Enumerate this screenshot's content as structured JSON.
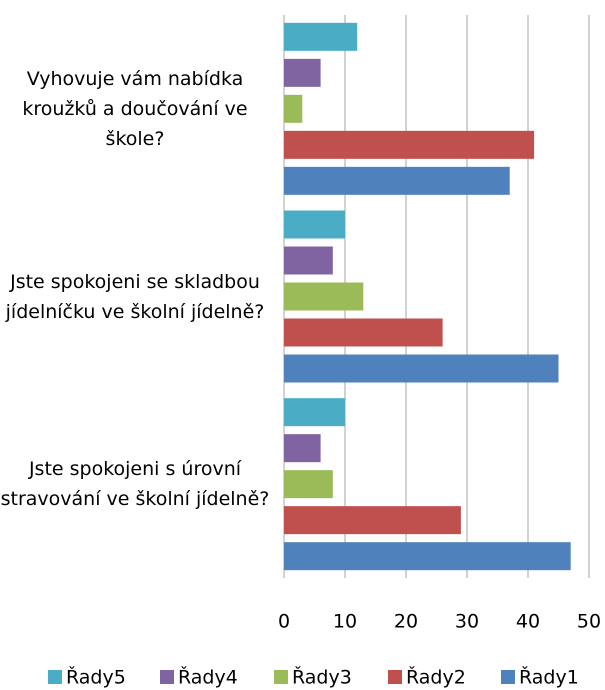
{
  "chart_data": {
    "type": "hbar",
    "categories": [
      "Vyhovuje vám nabídka kroužků a doučování ve škole?",
      "Jste spokojeni se skladbou jídelníčku ve školní jídelně?",
      "Jste spokojeni s úrovní stravování ve školní jídelně?"
    ],
    "series": [
      {
        "name": "Řady5",
        "color": "#4bacc6",
        "values": [
          12,
          10,
          10
        ]
      },
      {
        "name": "Řady4",
        "color": "#8064a2",
        "values": [
          6,
          8,
          6
        ]
      },
      {
        "name": "Řady3",
        "color": "#9bbb59",
        "values": [
          3,
          13,
          8
        ]
      },
      {
        "name": "Řady2",
        "color": "#c0504d",
        "values": [
          41,
          26,
          29
        ]
      },
      {
        "name": "Řady1",
        "color": "#4f81bd",
        "values": [
          37,
          45,
          47
        ]
      }
    ],
    "xlim": [
      0,
      50
    ],
    "xticks": [
      0,
      10,
      20,
      30,
      40,
      50
    ],
    "grid": true,
    "legend": "bottom"
  }
}
